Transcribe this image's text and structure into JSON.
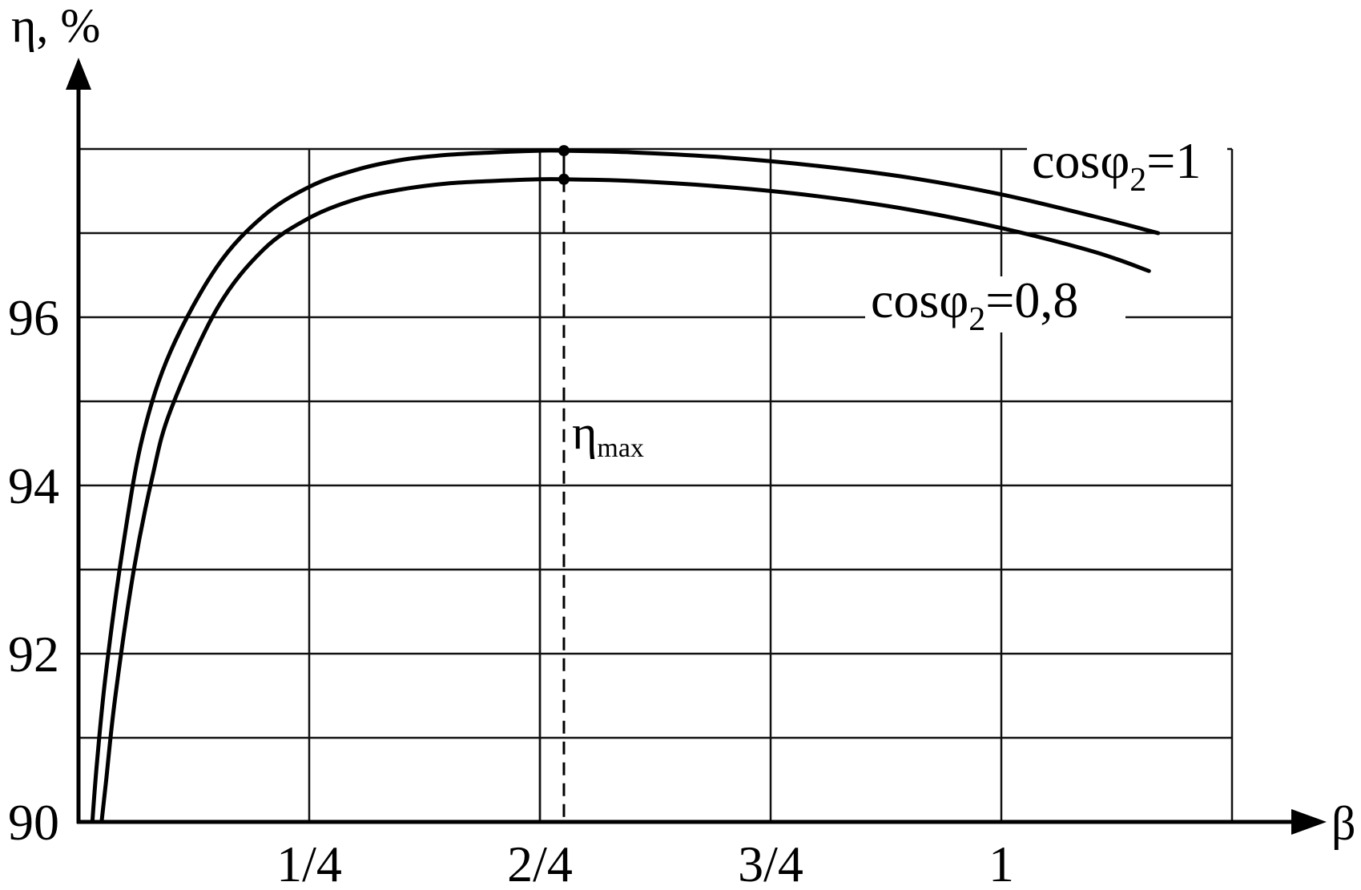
{
  "chart_data": {
    "type": "line",
    "xlabel": "β",
    "ylabel": "η, %",
    "xlim": [
      0,
      1.25
    ],
    "ylim": [
      90,
      98
    ],
    "x_ticks": [
      {
        "value": 0.25,
        "label": "1/4"
      },
      {
        "value": 0.5,
        "label": "2/4"
      },
      {
        "value": 0.75,
        "label": "3/4"
      },
      {
        "value": 1.0,
        "label": "1"
      }
    ],
    "y_ticks": [
      {
        "value": 90,
        "label": "90"
      },
      {
        "value": 92,
        "label": "92"
      },
      {
        "value": 94,
        "label": "94"
      },
      {
        "value": 96,
        "label": "96"
      }
    ],
    "grid": true,
    "series": [
      {
        "name": "cosφ2=1",
        "label_main": "cosφ",
        "label_sub": "2",
        "label_tail": "=1",
        "x": [
          0.015,
          0.02,
          0.03,
          0.05,
          0.07,
          0.1,
          0.15,
          0.2,
          0.25,
          0.3,
          0.35,
          0.4,
          0.45,
          0.5,
          0.526,
          0.6,
          0.7,
          0.8,
          0.9,
          1.0,
          1.1,
          1.17
        ],
        "values": [
          90.0,
          90.7,
          91.8,
          93.4,
          94.6,
          95.6,
          96.6,
          97.2,
          97.55,
          97.75,
          97.87,
          97.93,
          97.96,
          97.98,
          97.98,
          97.96,
          97.9,
          97.8,
          97.66,
          97.46,
          97.2,
          97.0
        ]
      },
      {
        "name": "cosφ2=0,8",
        "label_main": "cosφ",
        "label_sub": "2",
        "label_tail": "=0,8",
        "x": [
          0.025,
          0.03,
          0.04,
          0.06,
          0.08,
          0.1,
          0.15,
          0.2,
          0.25,
          0.3,
          0.35,
          0.4,
          0.45,
          0.5,
          0.526,
          0.6,
          0.7,
          0.8,
          0.9,
          1.0,
          1.1,
          1.16
        ],
        "values": [
          90.0,
          90.5,
          91.5,
          93.0,
          94.1,
          94.9,
          96.1,
          96.8,
          97.18,
          97.4,
          97.52,
          97.59,
          97.62,
          97.64,
          97.64,
          97.62,
          97.55,
          97.44,
          97.28,
          97.06,
          96.78,
          96.55
        ]
      }
    ],
    "annotations": [
      {
        "name": "eta-max",
        "main": "η",
        "sub": "max",
        "x": 0.526
      }
    ],
    "reference_x": 0.5
  }
}
